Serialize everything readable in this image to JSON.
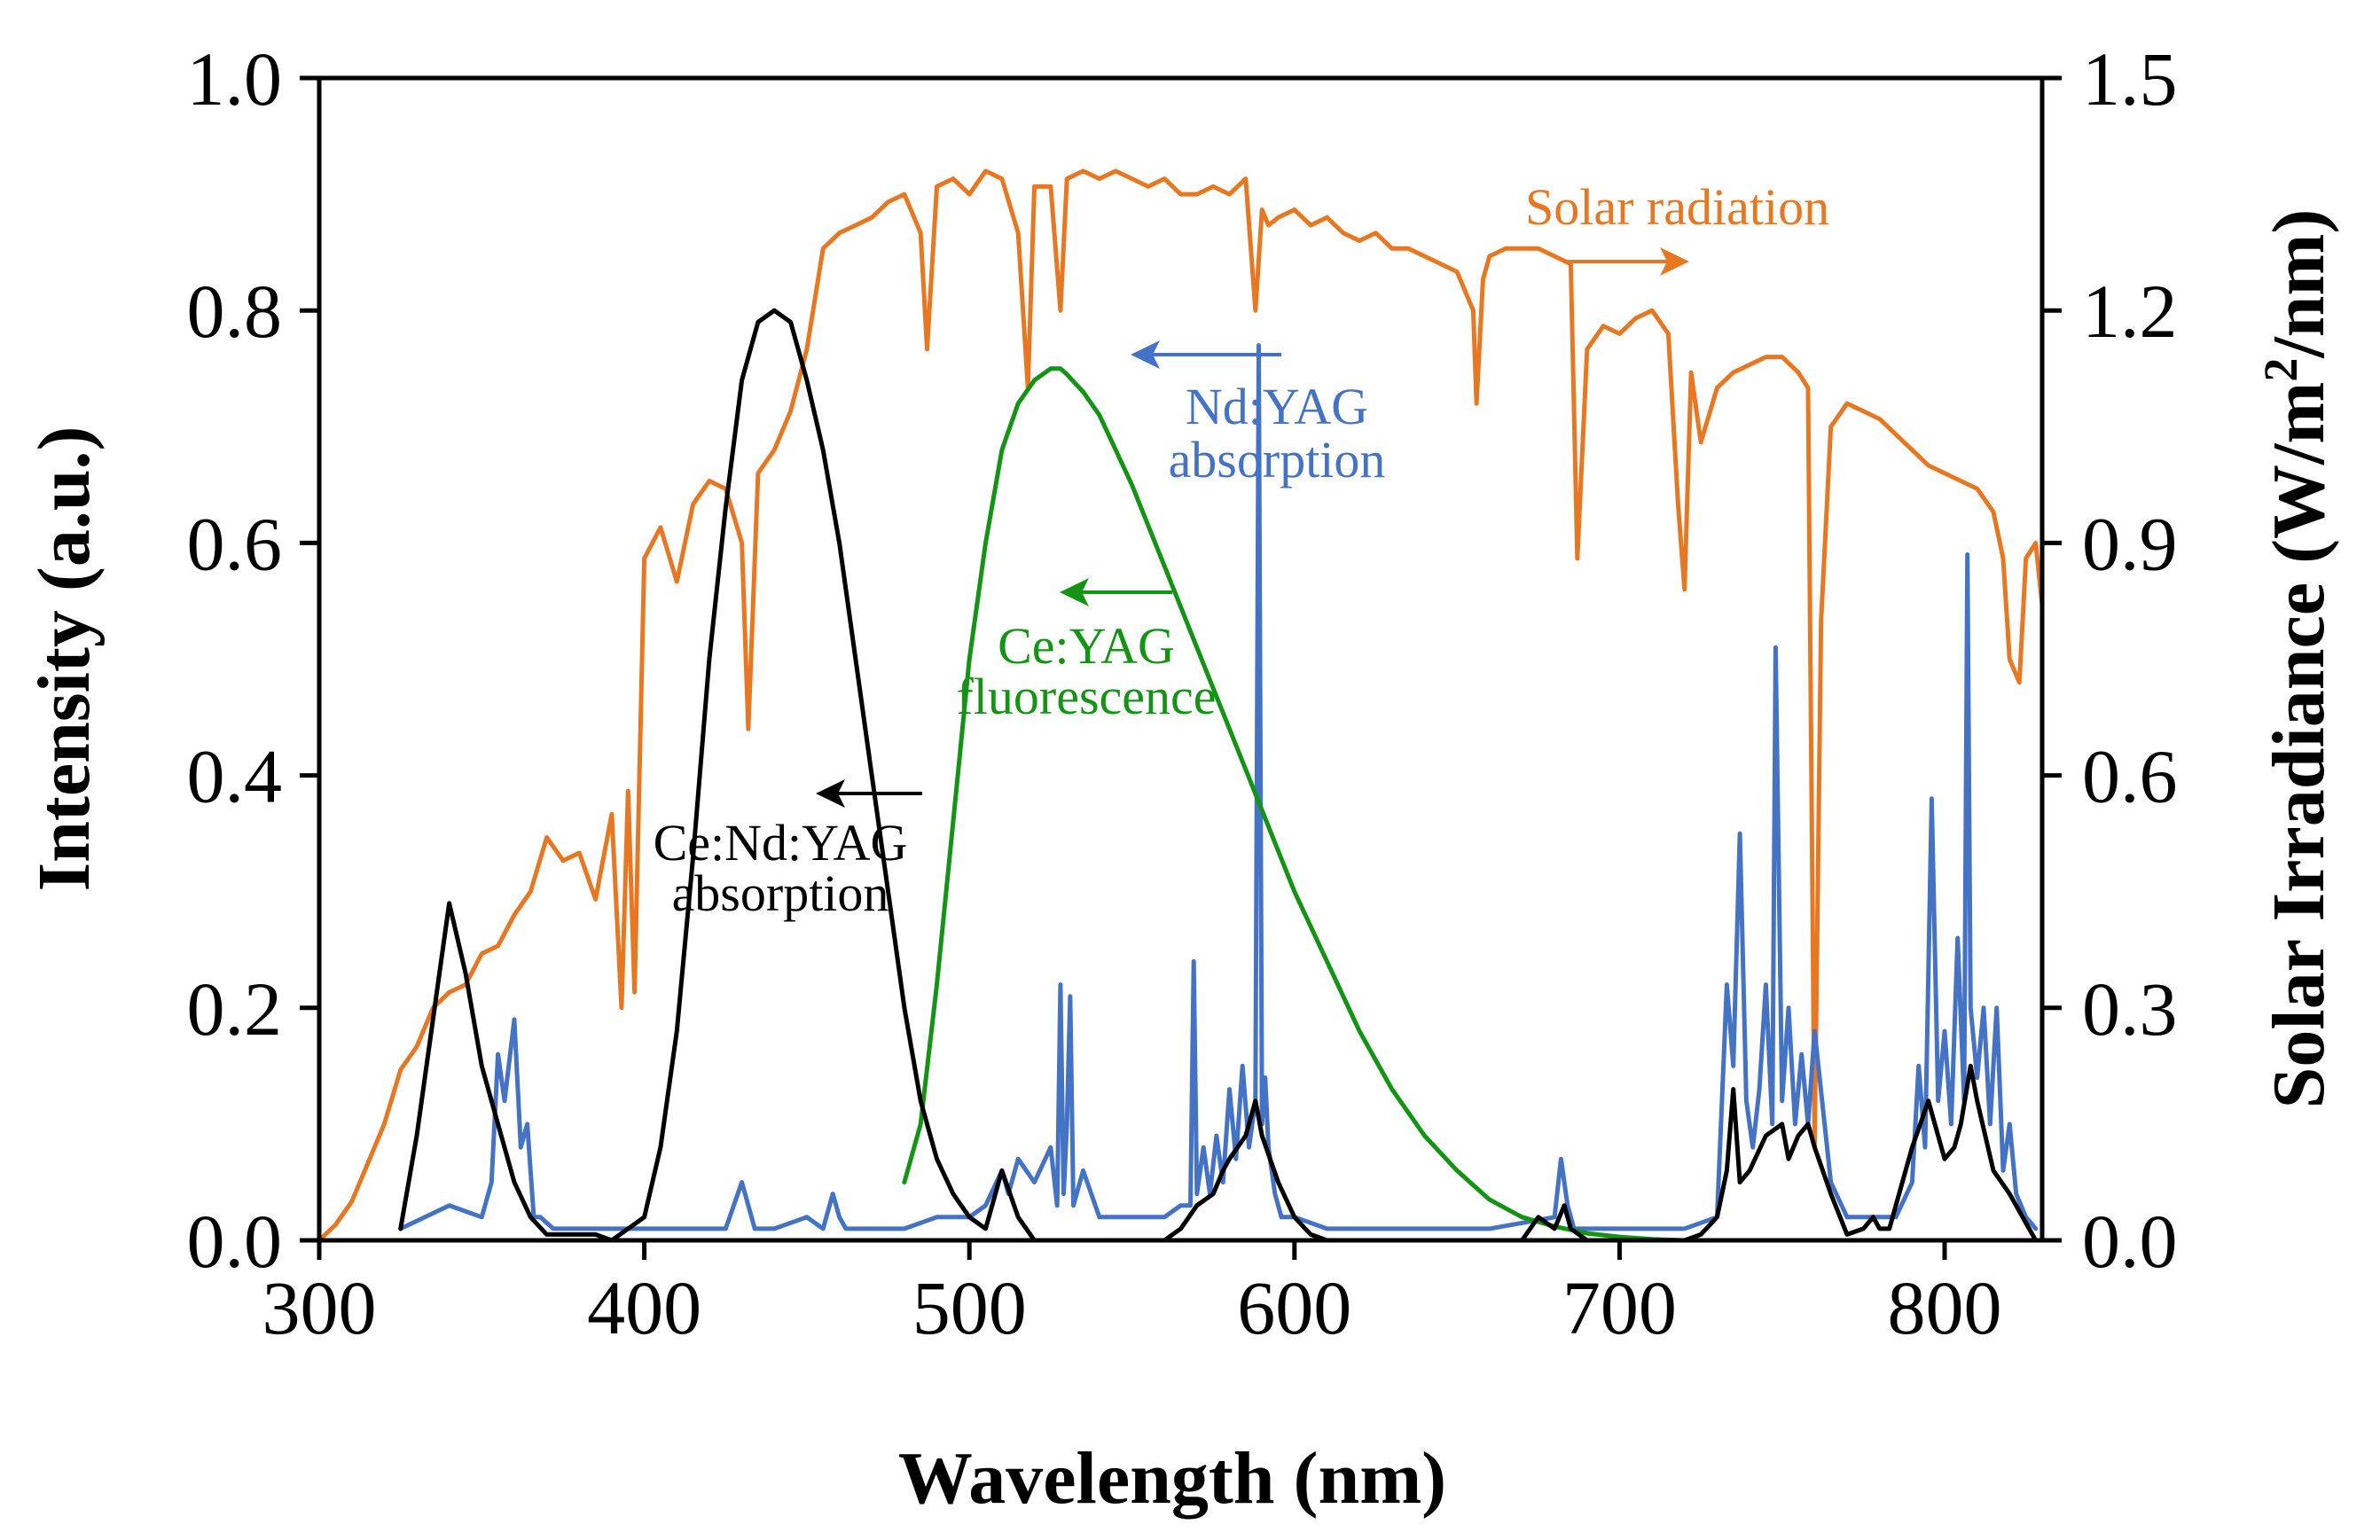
{
  "chart_data": {
    "type": "line",
    "xlabel": "Wavelength (nm)",
    "ylabel": "Intensity (a.u.)",
    "y2label_main": "Solar Irradiance (W/m",
    "y2label_sup": "2",
    "y2label_tail": "/nm)",
    "xlim": [
      300,
      830
    ],
    "ylim": [
      0,
      1.0
    ],
    "y2lim": [
      0,
      1.5
    ],
    "xticks": [
      300,
      400,
      500,
      600,
      700,
      800
    ],
    "xtick_labels": [
      "300",
      "400",
      "500",
      "600",
      "700",
      "800"
    ],
    "yticks": [
      0,
      0.2,
      0.4,
      0.6,
      0.8,
      1.0
    ],
    "ytick_labels": [
      "0.0",
      "0.2",
      "0.4",
      "0.6",
      "0.8",
      "1.0"
    ],
    "y2ticks": [
      0,
      0.3,
      0.6,
      0.9,
      1.2,
      1.5
    ],
    "y2tick_labels": [
      "0.0",
      "0.3",
      "0.6",
      "0.9",
      "1.2",
      "1.5"
    ],
    "grid": false,
    "series": [
      {
        "name": "Solar radiation",
        "axis": "right",
        "color": "#E87722",
        "x": [
          300,
          305,
          310,
          315,
          320,
          325,
          330,
          335,
          340,
          345,
          350,
          355,
          360,
          365,
          370,
          375,
          380,
          385,
          390,
          393,
          395,
          397,
          400,
          405,
          410,
          415,
          420,
          425,
          430,
          432,
          435,
          440,
          445,
          450,
          455,
          460,
          465,
          470,
          475,
          480,
          485,
          487,
          490,
          495,
          500,
          505,
          510,
          515,
          518,
          520,
          525,
          528,
          530,
          535,
          540,
          545,
          550,
          555,
          560,
          565,
          570,
          575,
          580,
          585,
          588,
          590,
          592,
          595,
          600,
          605,
          610,
          615,
          620,
          625,
          630,
          635,
          640,
          645,
          650,
          655,
          656,
          658,
          660,
          665,
          670,
          675,
          680,
          685,
          687,
          690,
          695,
          700,
          705,
          710,
          715,
          718,
          720,
          722,
          725,
          730,
          735,
          740,
          745,
          750,
          755,
          758,
          760,
          762,
          765,
          770,
          775,
          780,
          785,
          790,
          795,
          800,
          805,
          810,
          815,
          818,
          820,
          823,
          825,
          828,
          830
        ],
        "values": [
          0,
          0.02,
          0.05,
          0.1,
          0.15,
          0.22,
          0.25,
          0.3,
          0.32,
          0.33,
          0.37,
          0.38,
          0.42,
          0.45,
          0.52,
          0.49,
          0.5,
          0.44,
          0.55,
          0.3,
          0.58,
          0.32,
          0.88,
          0.92,
          0.85,
          0.95,
          0.98,
          0.97,
          0.9,
          0.66,
          0.99,
          1.02,
          1.07,
          1.15,
          1.28,
          1.3,
          1.31,
          1.32,
          1.34,
          1.35,
          1.3,
          1.15,
          1.36,
          1.37,
          1.35,
          1.38,
          1.37,
          1.3,
          1.1,
          1.36,
          1.36,
          1.2,
          1.37,
          1.38,
          1.37,
          1.38,
          1.37,
          1.36,
          1.37,
          1.35,
          1.35,
          1.36,
          1.35,
          1.37,
          1.2,
          1.33,
          1.31,
          1.32,
          1.33,
          1.31,
          1.32,
          1.3,
          1.29,
          1.3,
          1.28,
          1.28,
          1.27,
          1.26,
          1.25,
          1.2,
          1.08,
          1.24,
          1.27,
          1.28,
          1.28,
          1.28,
          1.27,
          1.26,
          0.88,
          1.15,
          1.18,
          1.17,
          1.19,
          1.2,
          1.17,
          0.95,
          0.84,
          1.12,
          1.03,
          1.1,
          1.12,
          1.13,
          1.14,
          1.14,
          1.12,
          1.1,
          0.12,
          0.8,
          1.05,
          1.08,
          1.07,
          1.06,
          1.04,
          1.02,
          1.0,
          0.99,
          0.98,
          0.97,
          0.94,
          0.88,
          0.75,
          0.72,
          0.88,
          0.9,
          0.82
        ],
        "label_text": "Solar radiation",
        "label_arrow": "right"
      },
      {
        "name": "Nd:YAG absorption",
        "axis": "left",
        "color": "#4472C4",
        "x": [
          325,
          340,
          350,
          353,
          355,
          357,
          360,
          362,
          364,
          366,
          368,
          372,
          380,
          400,
          425,
          430,
          432,
          434,
          440,
          450,
          455,
          458,
          460,
          462,
          470,
          480,
          490,
          500,
          505,
          510,
          512,
          515,
          520,
          525,
          527,
          528,
          529,
          530,
          531,
          532,
          535,
          540,
          550,
          560,
          565,
          568,
          569,
          570,
          572,
          574,
          576,
          578,
          580,
          582,
          584,
          586,
          588,
          589,
          590,
          591,
          592,
          594,
          596,
          600,
          610,
          620,
          640,
          660,
          680,
          682,
          684,
          686,
          690,
          700,
          710,
          720,
          730,
          733,
          735,
          737,
          739,
          741,
          743,
          745,
          747,
          748,
          750,
          752,
          754,
          756,
          758,
          760,
          765,
          770,
          775,
          780,
          785,
          790,
          792,
          794,
          796,
          798,
          800,
          802,
          804,
          806,
          807,
          808,
          810,
          812,
          814,
          816,
          818,
          820,
          822,
          825,
          828
        ],
        "values": [
          0.01,
          0.03,
          0.02,
          0.05,
          0.16,
          0.12,
          0.19,
          0.08,
          0.1,
          0.02,
          0.02,
          0.01,
          0.01,
          0.01,
          0.01,
          0.05,
          0.03,
          0.01,
          0.01,
          0.02,
          0.01,
          0.04,
          0.02,
          0.01,
          0.01,
          0.01,
          0.02,
          0.02,
          0.03,
          0.06,
          0.04,
          0.07,
          0.05,
          0.08,
          0.03,
          0.22,
          0.04,
          0.1,
          0.21,
          0.03,
          0.06,
          0.02,
          0.02,
          0.02,
          0.03,
          0.03,
          0.24,
          0.04,
          0.08,
          0.04,
          0.09,
          0.05,
          0.13,
          0.07,
          0.15,
          0.08,
          0.12,
          0.77,
          0.1,
          0.14,
          0.08,
          0.04,
          0.02,
          0.02,
          0.01,
          0.01,
          0.01,
          0.01,
          0.02,
          0.07,
          0.03,
          0.01,
          0.01,
          0.01,
          0.01,
          0.01,
          0.02,
          0.22,
          0.15,
          0.35,
          0.12,
          0.08,
          0.13,
          0.22,
          0.1,
          0.51,
          0.12,
          0.2,
          0.1,
          0.16,
          0.1,
          0.18,
          0.05,
          0.02,
          0.02,
          0.02,
          0.02,
          0.05,
          0.15,
          0.08,
          0.38,
          0.12,
          0.18,
          0.1,
          0.26,
          0.12,
          0.59,
          0.2,
          0.14,
          0.2,
          0.1,
          0.2,
          0.06,
          0.1,
          0.04,
          0.02,
          0.01
        ],
        "label_lines": [
          "Nd:YAG",
          "absorption"
        ],
        "label_arrow": "left"
      },
      {
        "name": "Ce:YAG fluorescence",
        "axis": "left",
        "color": "#149414",
        "x": [
          480,
          485,
          490,
          495,
          500,
          505,
          510,
          515,
          520,
          525,
          528,
          530,
          535,
          540,
          545,
          550,
          560,
          570,
          580,
          590,
          600,
          610,
          620,
          630,
          640,
          650,
          660,
          670,
          680,
          690,
          700,
          710,
          720,
          730,
          740,
          750
        ],
        "values": [
          0.05,
          0.1,
          0.22,
          0.36,
          0.5,
          0.6,
          0.68,
          0.72,
          0.74,
          0.75,
          0.75,
          0.745,
          0.73,
          0.71,
          0.68,
          0.65,
          0.58,
          0.51,
          0.44,
          0.37,
          0.3,
          0.24,
          0.18,
          0.13,
          0.09,
          0.06,
          0.035,
          0.02,
          0.012,
          0.006,
          0.003,
          0.001,
          0.0,
          0.0,
          0.0,
          0.0
        ],
        "label_lines": [
          "Ce:YAG",
          "fluorescence"
        ],
        "label_arrow": "left"
      },
      {
        "name": "Ce:Nd:YAG absorption",
        "axis": "left",
        "color": "#000000",
        "x": [
          325,
          330,
          335,
          340,
          345,
          350,
          355,
          360,
          365,
          370,
          375,
          385,
          390,
          395,
          400,
          405,
          410,
          415,
          420,
          425,
          430,
          435,
          440,
          445,
          450,
          455,
          460,
          465,
          470,
          475,
          480,
          485,
          490,
          495,
          500,
          505,
          510,
          515,
          520,
          525,
          528,
          530,
          532,
          535,
          537,
          560,
          565,
          570,
          575,
          578,
          580,
          585,
          588,
          590,
          595,
          600,
          605,
          610,
          670,
          675,
          680,
          683,
          685,
          690,
          700,
          710,
          720,
          725,
          730,
          733,
          735,
          737,
          740,
          745,
          750,
          752,
          755,
          758,
          760,
          765,
          770,
          775,
          778,
          780,
          783,
          785,
          790,
          795,
          797,
          800,
          803,
          805,
          808,
          810,
          815,
          820,
          828
        ],
        "values": [
          0.01,
          0.09,
          0.19,
          0.29,
          0.23,
          0.15,
          0.1,
          0.05,
          0.02,
          0.005,
          0.005,
          0.005,
          0.0,
          0.01,
          0.02,
          0.08,
          0.18,
          0.33,
          0.5,
          0.63,
          0.74,
          0.79,
          0.8,
          0.79,
          0.74,
          0.68,
          0.6,
          0.5,
          0.4,
          0.3,
          0.2,
          0.12,
          0.07,
          0.04,
          0.02,
          0.01,
          0.06,
          0.02,
          0.0,
          0.0,
          0.0,
          0.0,
          0.0,
          0.0,
          0.0,
          0.0,
          0.01,
          0.03,
          0.04,
          0.06,
          0.07,
          0.09,
          0.12,
          0.09,
          0.05,
          0.02,
          0.005,
          0.0,
          0.0,
          0.02,
          0.01,
          0.03,
          0.01,
          0.0,
          0.0,
          0.0,
          0.0,
          0.005,
          0.02,
          0.06,
          0.13,
          0.05,
          0.06,
          0.09,
          0.1,
          0.07,
          0.09,
          0.1,
          0.08,
          0.04,
          0.005,
          0.01,
          0.02,
          0.01,
          0.01,
          0.03,
          0.08,
          0.12,
          0.1,
          0.07,
          0.08,
          0.1,
          0.15,
          0.12,
          0.06,
          0.04,
          0.0
        ],
        "label_lines": [
          "Ce:Nd:YAG",
          "absorption"
        ],
        "label_arrow": "left"
      }
    ]
  }
}
